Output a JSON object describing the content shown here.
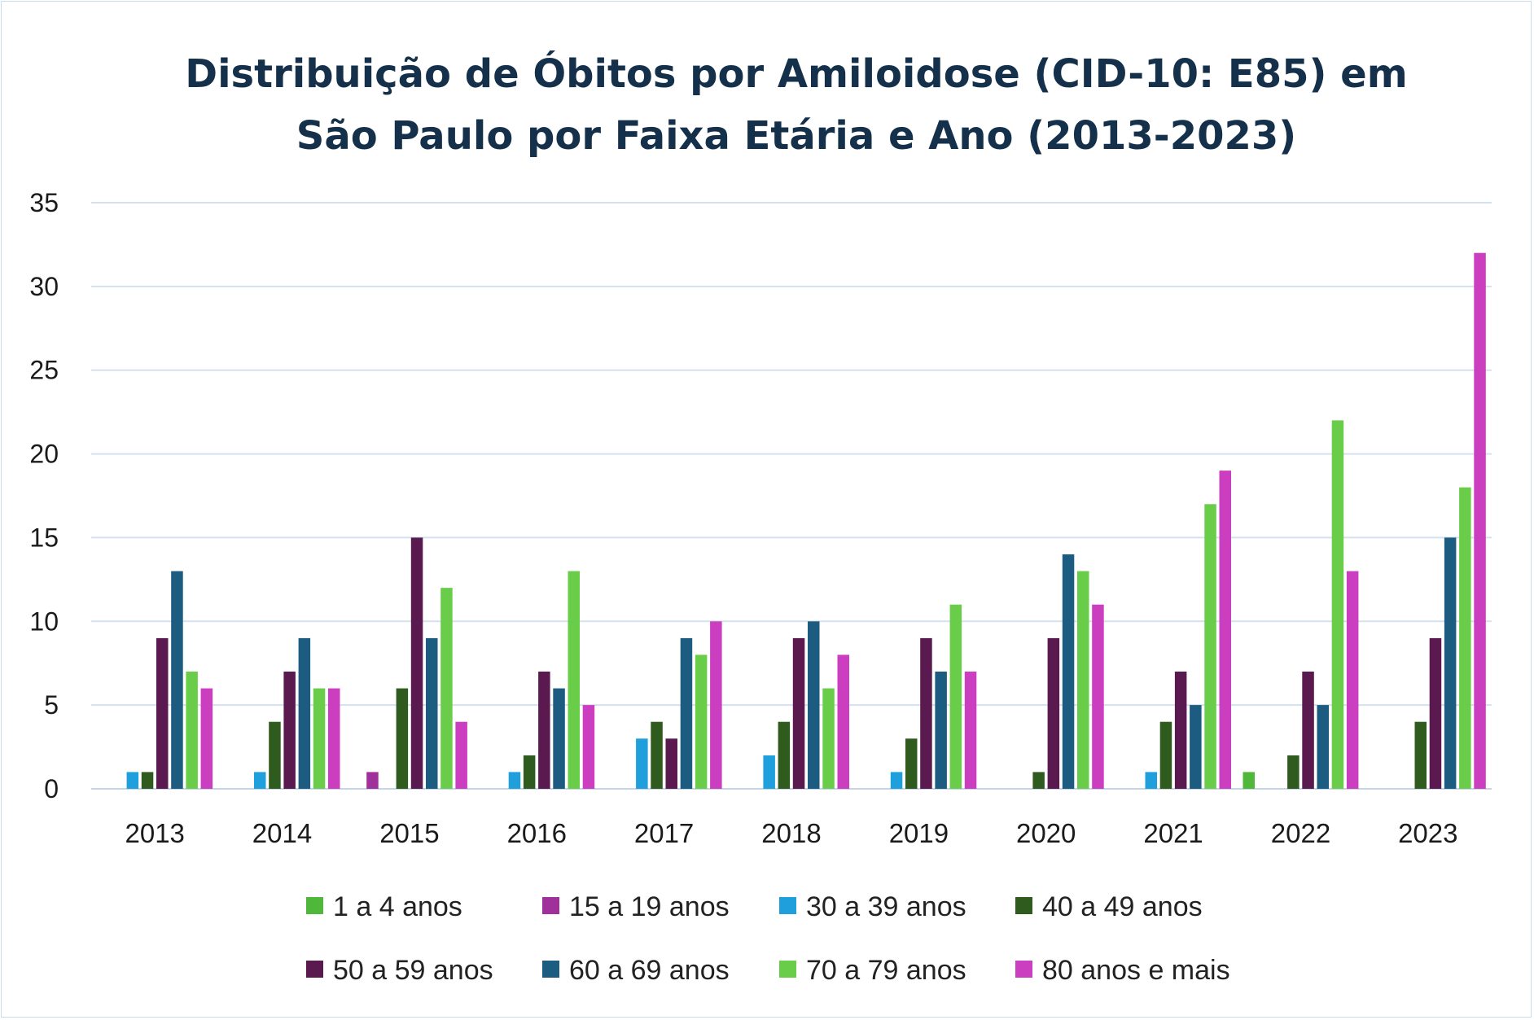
{
  "chart_data": {
    "type": "bar",
    "title": "Distribuição de Óbitos por Amiloidose (CID-10: E85) em São Paulo por Faixa Etária e Ano (2013-2023)",
    "title_lines": [
      "Distribuição de Óbitos por Amiloidose (CID-10: E85) em",
      "São Paulo por Faixa Etária e Ano (2013-2023)"
    ],
    "xlabel": "",
    "ylabel": "",
    "ylim": [
      0,
      35
    ],
    "yticks": [
      "0",
      "5",
      "10",
      "15",
      "20",
      "25",
      "30",
      "35"
    ],
    "grid": true,
    "legend_position": "bottom",
    "categories": [
      "2013",
      "2014",
      "2015",
      "2016",
      "2017",
      "2018",
      "2019",
      "2020",
      "2021",
      "2022",
      "2023"
    ],
    "series": [
      {
        "name": "1 a 4 anos",
        "color": "#4fb83a",
        "values": [
          0,
          0,
          0,
          0,
          0,
          0,
          0,
          0,
          0,
          1,
          0
        ]
      },
      {
        "name": "15 a 19 anos",
        "color": "#a0309a",
        "values": [
          0,
          0,
          1,
          0,
          0,
          0,
          0,
          0,
          0,
          0,
          0
        ]
      },
      {
        "name": "30 a 39 anos",
        "color": "#1fa0dc",
        "values": [
          1,
          1,
          0,
          1,
          3,
          2,
          1,
          0,
          1,
          0,
          0
        ]
      },
      {
        "name": "40 a 49 anos",
        "color": "#2f5c1e",
        "values": [
          1,
          4,
          6,
          2,
          4,
          4,
          3,
          1,
          4,
          2,
          4
        ]
      },
      {
        "name": "50 a 59 anos",
        "color": "#5a1a50",
        "values": [
          9,
          7,
          15,
          7,
          3,
          9,
          9,
          9,
          7,
          7,
          9
        ]
      },
      {
        "name": "60 a 69 anos",
        "color": "#1c5c80",
        "values": [
          13,
          9,
          9,
          6,
          9,
          10,
          7,
          14,
          5,
          5,
          15
        ]
      },
      {
        "name": "70 a 79 anos",
        "color": "#6acd4a",
        "values": [
          7,
          6,
          12,
          13,
          8,
          6,
          11,
          13,
          17,
          22,
          18
        ]
      },
      {
        "name": "80 anos e mais",
        "color": "#cc3ec0",
        "values": [
          6,
          6,
          4,
          5,
          10,
          8,
          7,
          11,
          19,
          13,
          32
        ]
      }
    ]
  }
}
